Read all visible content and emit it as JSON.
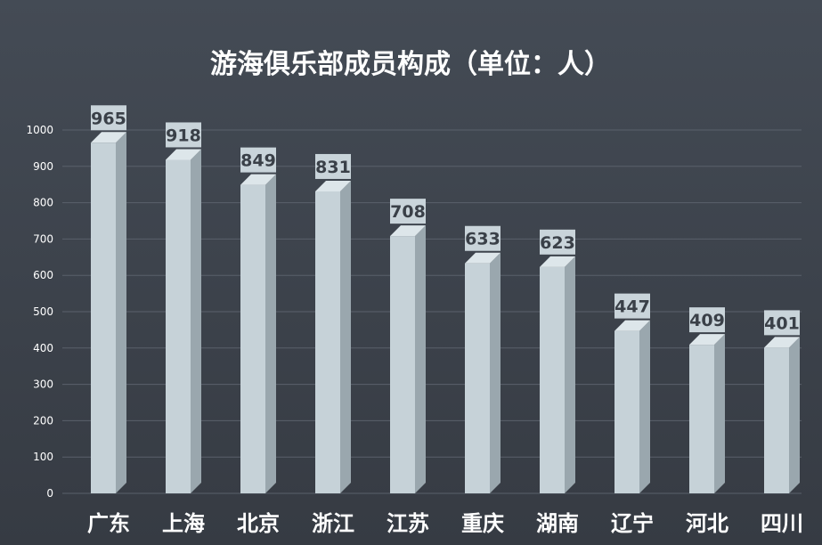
{
  "chart_data": {
    "type": "bar",
    "title": "游海俱乐部成员构成（单位：人）",
    "categories": [
      "广东",
      "上海",
      "北京",
      "浙江",
      "江苏",
      "重庆",
      "湖南",
      "辽宁",
      "河北",
      "四川"
    ],
    "values": [
      965,
      918,
      849,
      831,
      708,
      633,
      623,
      447,
      409,
      401
    ],
    "yticks": [
      0,
      100,
      200,
      300,
      400,
      500,
      600,
      700,
      800,
      900,
      1000
    ],
    "ylim": [
      0,
      1000
    ],
    "xlabel": "",
    "ylabel": "",
    "grid": true,
    "bar_style": "3d-column",
    "colors": {
      "bar_front": "#c6d2d8",
      "bar_side": "#9aa7ae",
      "bar_top": "#dde6ea",
      "label_box": "#c9d4da",
      "background": "#40464f",
      "grid": "#5a616b"
    }
  }
}
